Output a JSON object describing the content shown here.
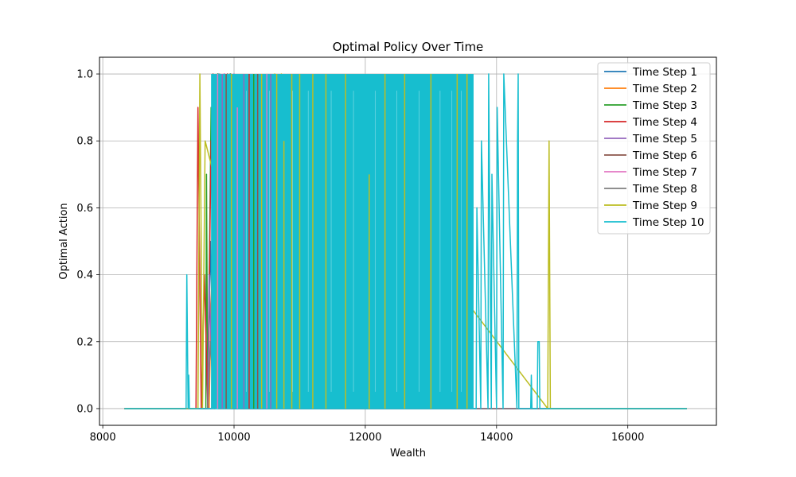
{
  "chart_data": {
    "type": "line",
    "title": "Optimal Policy Over Time",
    "xlabel": "Wealth",
    "ylabel": "Optimal Action",
    "xlim": [
      7950,
      17350
    ],
    "ylim": [
      -0.05,
      1.05
    ],
    "xticks": [
      8000,
      10000,
      12000,
      14000,
      16000
    ],
    "yticks": [
      0.0,
      0.2,
      0.4,
      0.6,
      0.8,
      1.0
    ],
    "xtick_labels": [
      "8000",
      "10000",
      "12000",
      "14000",
      "16000"
    ],
    "ytick_labels": [
      "0.0",
      "0.2",
      "0.4",
      "0.6",
      "0.8",
      "1.0"
    ],
    "grid": true,
    "legend_position": "top-right",
    "series": [
      {
        "name": "Time Step 1",
        "color": "#1f77b4",
        "x": [
          8330,
          9600,
          9640,
          9700,
          9760,
          9800,
          9860,
          9900,
          9950,
          10000,
          10100,
          16900
        ],
        "y": [
          0,
          0,
          0.5,
          0,
          1.0,
          0,
          0.8,
          0,
          1.0,
          0,
          0,
          0
        ]
      },
      {
        "name": "Time Step 2",
        "color": "#ff7f0e",
        "x": [
          8330,
          9620,
          9660,
          9720,
          9780,
          9840,
          9900,
          9960,
          10020,
          16900
        ],
        "y": [
          0,
          0,
          0.4,
          0,
          0.9,
          0,
          1.0,
          0,
          0,
          0
        ]
      },
      {
        "name": "Time Step 3",
        "color": "#2ca02c",
        "x": [
          8330,
          9570,
          9580,
          9600,
          9650,
          9700,
          9750,
          9800,
          9850,
          9930,
          9940,
          10000,
          16900
        ],
        "y": [
          0,
          0,
          0.7,
          0,
          0.9,
          0,
          1.0,
          0,
          0.9,
          0,
          1.0,
          0,
          0
        ]
      },
      {
        "name": "Time Step 4",
        "color": "#d62728",
        "x": [
          8330,
          9420,
          9450,
          9500,
          9550,
          9600,
          9650,
          9700,
          9720,
          9760,
          9800,
          16900
        ],
        "y": [
          0,
          0,
          0.9,
          0,
          0.4,
          0,
          0.8,
          0,
          0.9,
          0,
          0,
          0
        ]
      },
      {
        "name": "Time Step 5",
        "color": "#9467bd",
        "x": [
          8330,
          9600,
          9620,
          9680,
          9740,
          9800,
          9850,
          9900,
          10000,
          10100,
          16900
        ],
        "y": [
          0,
          0,
          0.4,
          0,
          0.8,
          0,
          1.0,
          0,
          1.0,
          0,
          0
        ]
      },
      {
        "name": "Time Step 6",
        "color": "#8c564b",
        "x": [
          8330,
          9660,
          9680,
          9720,
          9760,
          9800,
          9900,
          9950,
          10050,
          16900
        ],
        "y": [
          0,
          0,
          1.0,
          0,
          0.9,
          0,
          1.0,
          0,
          0,
          0
        ]
      },
      {
        "name": "Time Step 7",
        "color": "#e377c2",
        "x": [
          8330,
          9700,
          9740,
          9800,
          9860,
          9920,
          9980,
          10040,
          16900
        ],
        "y": [
          0,
          0,
          0.8,
          0,
          1.0,
          0,
          0.9,
          0,
          0
        ]
      },
      {
        "name": "Time Step 8",
        "color": "#7f7f7f",
        "x": [
          8330,
          9600,
          9640,
          9700,
          9780,
          9840,
          9900,
          10000,
          10040,
          10100,
          16900
        ],
        "y": [
          0,
          0,
          0.2,
          0,
          1.0,
          0,
          0.9,
          0,
          0.3,
          0,
          0
        ]
      },
      {
        "name": "Time Step 9",
        "color": "#bcbd22",
        "x": [
          8330,
          9450,
          9480,
          9520,
          9560,
          10600,
          10620,
          10700,
          10720,
          12060,
          12070,
          14780,
          14800,
          14820,
          14830,
          16900
        ],
        "y": [
          0,
          0,
          1.0,
          0,
          0.8,
          0,
          1.0,
          0,
          1.0,
          0,
          0.7,
          0,
          0.8,
          0,
          0,
          0
        ]
      },
      {
        "name": "Time Step 10",
        "color": "#17becf",
        "x": [
          8330,
          9270,
          9280,
          9300,
          9310,
          9320,
          13690,
          13700,
          13760,
          13770,
          13870,
          13880,
          13920,
          13930,
          14000,
          14010,
          14100,
          14110,
          14310,
          14320,
          14330,
          14340,
          14520,
          14530,
          14540,
          14620,
          14630,
          14650,
          14660,
          16900
        ],
        "y": [
          0,
          0,
          0.4,
          0,
          0.1,
          0,
          0,
          0.6,
          0,
          0.8,
          0,
          1.0,
          0,
          0.7,
          0,
          0.9,
          0,
          1.0,
          0,
          0.8,
          1.0,
          0,
          0,
          0.1,
          0,
          0,
          0.2,
          0.2,
          0,
          0
        ]
      }
    ],
    "dense_band": {
      "series": "Time Step 10",
      "x_range": [
        9650,
        13650
      ],
      "values": [
        0,
        1.0
      ]
    }
  }
}
